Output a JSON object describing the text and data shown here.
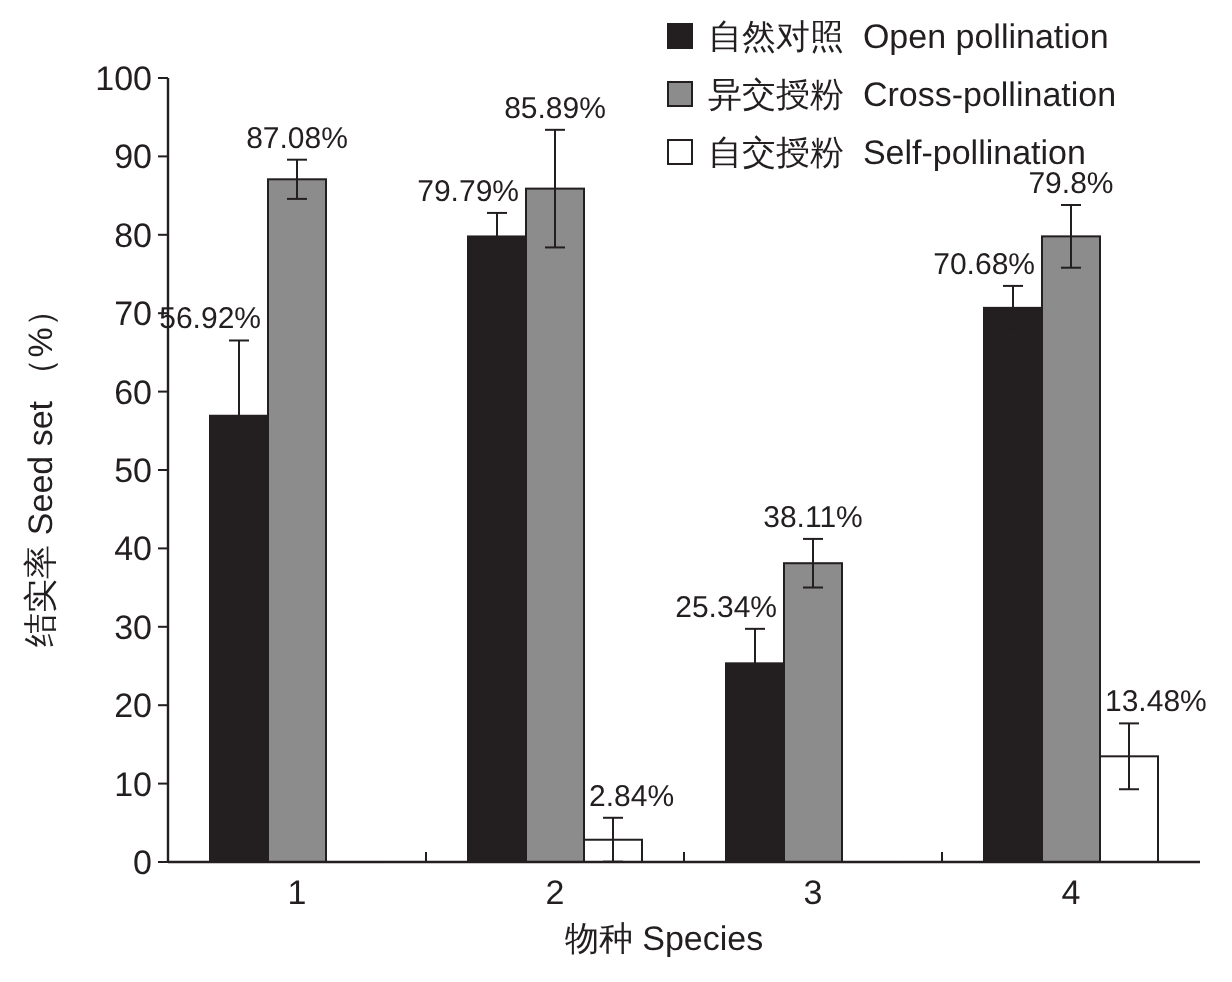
{
  "chart_data": {
    "type": "bar",
    "xlabel": "物种  Species",
    "ylabel": "结实率  Seed set （%）",
    "categories": [
      "1",
      "2",
      "3",
      "4"
    ],
    "series": [
      {
        "name": "自然对照  Open pollination",
        "color": "#231f20",
        "values": [
          56.92,
          79.79,
          25.34,
          70.68
        ],
        "errors": [
          9.6,
          3.0,
          4.4,
          2.8
        ],
        "value_labels": [
          "56.92%",
          "79.79%",
          "25.34%",
          "70.68%"
        ]
      },
      {
        "name": "异交授粉  Cross-pollination",
        "color": "#8c8c8c",
        "values": [
          87.08,
          85.89,
          38.11,
          79.8
        ],
        "errors": [
          2.5,
          7.5,
          3.1,
          4.0
        ],
        "value_labels": [
          "87.08%",
          "85.89%",
          "38.11%",
          "79.8%"
        ]
      },
      {
        "name": "自交授粉  Self-pollination",
        "color": "#ffffff",
        "values": [
          0,
          2.84,
          0,
          13.48
        ],
        "errors": [
          null,
          2.8,
          null,
          4.2
        ],
        "value_labels": [
          null,
          "2.84%",
          null,
          "13.48%"
        ]
      }
    ],
    "ylim": [
      0,
      100
    ],
    "yticks": [
      0,
      10,
      20,
      30,
      40,
      50,
      60,
      70,
      80,
      90,
      100
    ],
    "grid": false,
    "legend": "top right"
  }
}
